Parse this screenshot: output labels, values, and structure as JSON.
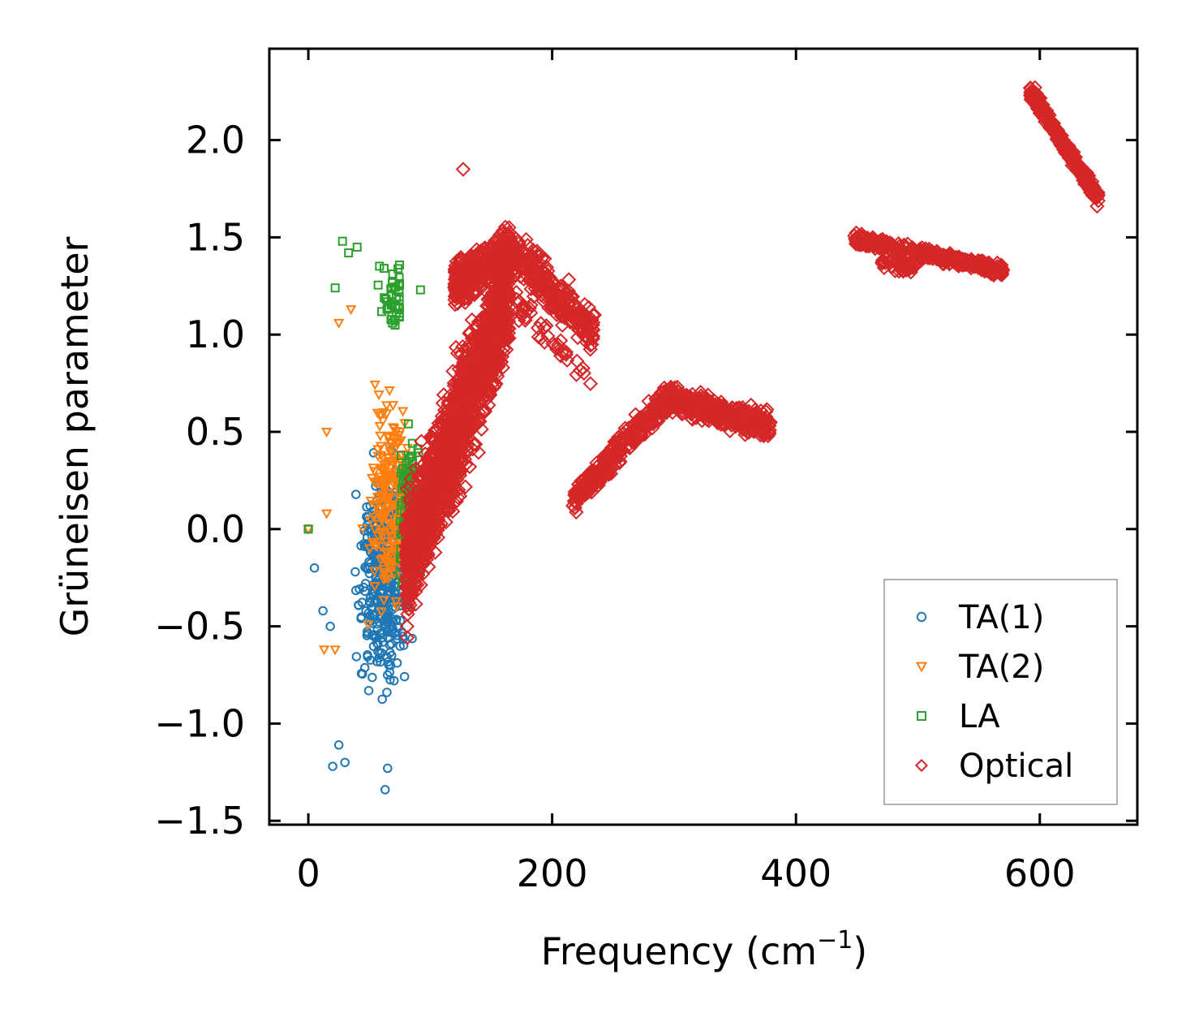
{
  "chart_data": {
    "type": "scatter",
    "xlabel": "Frequency (cm",
    "xlabel_sup": "−1",
    "xlabel_close": ")",
    "ylabel": "Grüneisen parameter",
    "xlim": [
      -32,
      680
    ],
    "ylim": [
      -1.52,
      2.47
    ],
    "xticks": [
      0,
      200,
      400,
      600
    ],
    "xtick_labels": [
      "0",
      "200",
      "400",
      "600"
    ],
    "yticks": [
      -1.5,
      -1.0,
      -0.5,
      0.0,
      0.5,
      1.0,
      1.5,
      2.0
    ],
    "ytick_labels": [
      "−1.5",
      "−1.0",
      "−0.5",
      "0.0",
      "0.5",
      "1.0",
      "1.5",
      "2.0"
    ],
    "legend_position": "bottom-right",
    "series": [
      {
        "name": "TA(1)",
        "marker": "circle",
        "color": "#1f77b4",
        "clusters": [
          {
            "x": [
              10,
              90
            ],
            "y": [
              -1.3,
              0.95
            ],
            "n": 420,
            "concentrate_x": 62
          }
        ],
        "points": [
          [
            0,
            0.0
          ],
          [
            63,
            -1.34
          ],
          [
            65,
            -1.23
          ],
          [
            30,
            -1.2
          ],
          [
            20,
            -1.22
          ],
          [
            25,
            -1.11
          ],
          [
            5,
            -0.2
          ],
          [
            12,
            -0.42
          ],
          [
            18,
            -0.5
          ]
        ]
      },
      {
        "name": "TA(2)",
        "marker": "triangle-down",
        "color": "#ff7f0e",
        "clusters": [
          {
            "x": [
              12,
              85
            ],
            "y": [
              -0.95,
              1.15
            ],
            "n": 260,
            "concentrate_x": 68
          }
        ],
        "points": [
          [
            0,
            0.0
          ],
          [
            25,
            1.06
          ],
          [
            35,
            1.13
          ],
          [
            15,
            0.5
          ],
          [
            15,
            0.08
          ],
          [
            13,
            -0.62
          ],
          [
            22,
            -0.62
          ]
        ]
      },
      {
        "name": "LA",
        "marker": "square",
        "color": "#2ca02c",
        "clusters": [
          {
            "x": [
              20,
              92
            ],
            "y": [
              -0.55,
              1.5
            ],
            "n": 170,
            "concentrate_x": 80
          }
        ],
        "points": [
          [
            0,
            0.0
          ],
          [
            28,
            1.48
          ],
          [
            22,
            1.24
          ],
          [
            33,
            1.42
          ],
          [
            40,
            1.45
          ],
          [
            92,
            1.23
          ]
        ]
      },
      {
        "name": "Optical",
        "marker": "diamond",
        "color": "#d62728",
        "clusters": [
          {
            "x": [
              80,
              165
            ],
            "y": [
              -0.35,
              1.6
            ],
            "n": 1600,
            "band": "main-left"
          },
          {
            "x": [
              120,
              235
            ],
            "y": [
              0.9,
              1.65
            ],
            "n": 700,
            "band": "main-right"
          },
          {
            "x": [
              218,
              380
            ],
            "y": [
              0.12,
              0.8
            ],
            "n": 700,
            "band": "mid"
          },
          {
            "x": [
              448,
              570
            ],
            "y": [
              1.28,
              1.5
            ],
            "n": 500,
            "band": "upper"
          },
          {
            "x": [
              592,
              648
            ],
            "y": [
              1.66,
              2.27
            ],
            "n": 400,
            "band": "top"
          }
        ],
        "points": [
          [
            127,
            1.85
          ],
          [
            217,
            0.12
          ],
          [
            378,
            0.49
          ],
          [
            647,
            1.66
          ],
          [
            596,
            2.27
          ]
        ]
      }
    ]
  }
}
